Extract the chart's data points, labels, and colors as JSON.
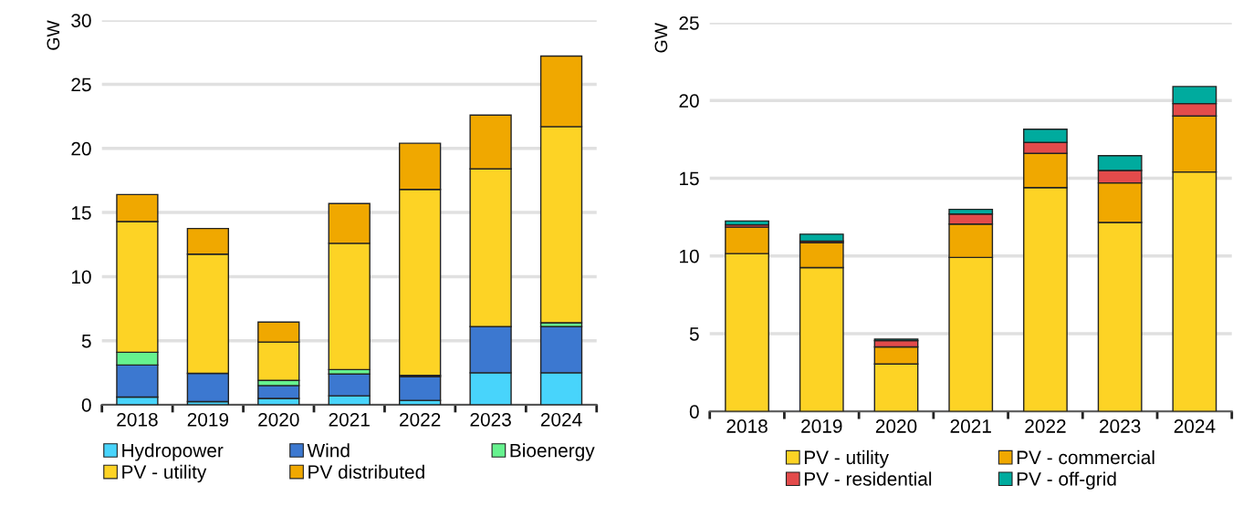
{
  "chart_data": [
    {
      "type": "bar",
      "stacked": true,
      "ylabel": "GW",
      "categories": [
        "2018",
        "2019",
        "2020",
        "2021",
        "2022",
        "2023",
        "2024"
      ],
      "ylim": [
        0,
        30
      ],
      "yticks": [
        0,
        5,
        10,
        15,
        20,
        25,
        30
      ],
      "grid": "y",
      "legend": "bottom",
      "series": [
        {
          "name": "Hydropower",
          "color": "#48d4fb",
          "values": [
            0.6,
            0.25,
            0.5,
            0.7,
            0.35,
            2.5,
            2.5
          ]
        },
        {
          "name": "Wind",
          "color": "#3c78d0",
          "values": [
            2.5,
            2.2,
            1.0,
            1.7,
            1.85,
            3.6,
            3.6
          ]
        },
        {
          "name": "Bioenergy",
          "color": "#66f28e",
          "values": [
            1.0,
            null,
            0.4,
            0.35,
            0.1,
            null,
            0.3
          ]
        },
        {
          "name": "PV - utility",
          "color": "#fdd325",
          "values": [
            10.2,
            9.3,
            3.0,
            9.85,
            14.5,
            12.3,
            15.3
          ]
        },
        {
          "name": "PV distributed",
          "color": "#f0a800",
          "values": [
            2.1,
            2.0,
            1.55,
            3.1,
            3.6,
            4.2,
            5.5
          ]
        }
      ]
    },
    {
      "type": "bar",
      "stacked": true,
      "ylabel": "GW",
      "categories": [
        "2018",
        "2019",
        "2020",
        "2021",
        "2022",
        "2023",
        "2024"
      ],
      "ylim": [
        0,
        25
      ],
      "yticks": [
        0,
        5,
        10,
        15,
        20,
        25
      ],
      "grid": "y",
      "legend": "bottom",
      "series": [
        {
          "name": "PV - utility",
          "color": "#fdd325",
          "values": [
            10.15,
            9.25,
            3.05,
            9.9,
            14.4,
            12.15,
            15.4
          ]
        },
        {
          "name": "PV - commercial",
          "color": "#f0a800",
          "values": [
            1.7,
            1.6,
            1.1,
            2.15,
            2.2,
            2.55,
            3.6
          ]
        },
        {
          "name": "PV - residential",
          "color": "#e34b4b",
          "values": [
            0.15,
            0.1,
            0.4,
            0.65,
            0.7,
            0.8,
            0.8
          ]
        },
        {
          "name": "PV - off-grid",
          "color": "#00ab9e",
          "values": [
            0.25,
            0.45,
            0.1,
            0.3,
            0.85,
            0.95,
            1.1
          ]
        }
      ]
    }
  ]
}
